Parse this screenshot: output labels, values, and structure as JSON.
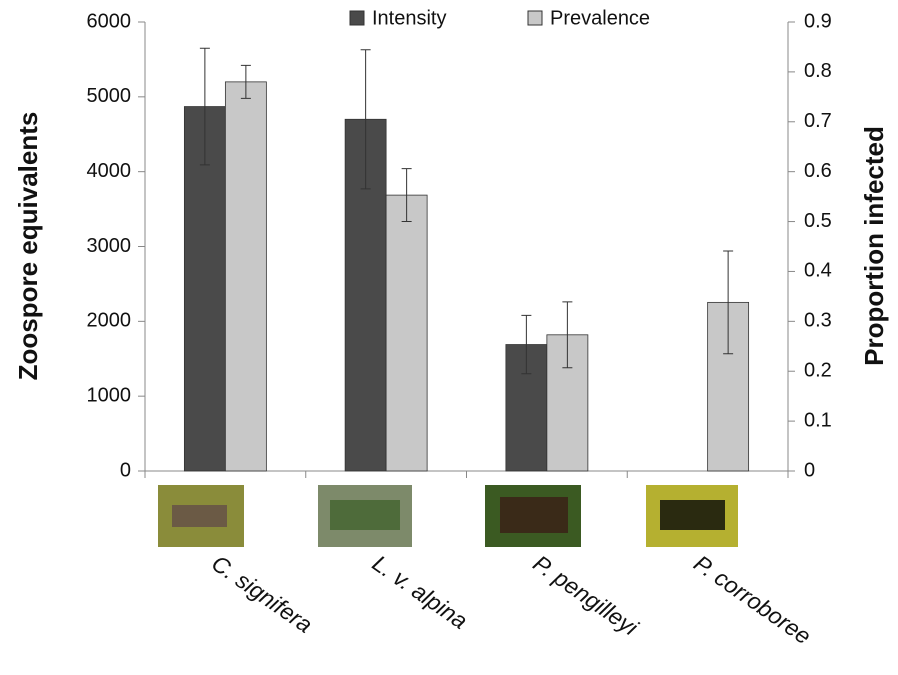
{
  "chart_data": {
    "type": "bar",
    "ylabel": "Zoospore equivalents",
    "y2label": "Proportion infected",
    "categories": [
      "C. signifera",
      "L. v. alpina",
      "P. pengilleyi",
      "P. corroboree"
    ],
    "series": [
      {
        "name": "Intensity",
        "color": "#4a4a4a",
        "values": [
          4870,
          4700,
          1690,
          null
        ],
        "errors": [
          780,
          930,
          390,
          null
        ]
      },
      {
        "name": "Prevalence",
        "color": "#c8c8c8",
        "axis": "y2",
        "values": [
          0.78,
          0.553,
          0.273,
          0.338
        ],
        "errors": [
          0.033,
          0.053,
          0.066,
          0.103
        ]
      }
    ],
    "ylim": [
      0,
      6000
    ],
    "yticks": [
      0,
      1000,
      2000,
      3000,
      4000,
      5000,
      6000
    ],
    "y2lim": [
      0,
      0.9
    ],
    "y2ticks": [
      0,
      0.1,
      0.2,
      0.3,
      0.4,
      0.5,
      0.6,
      0.7,
      0.8,
      0.9
    ],
    "legend": "top"
  }
}
